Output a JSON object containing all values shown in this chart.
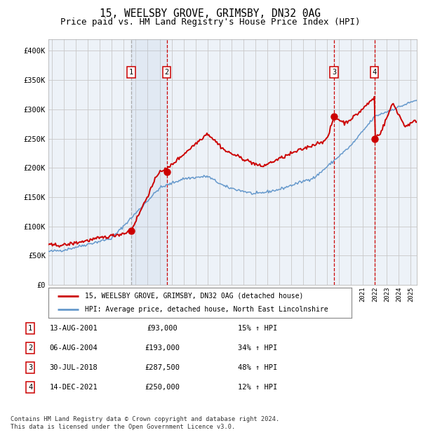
{
  "title": "15, WEELSBY GROVE, GRIMSBY, DN32 0AG",
  "subtitle": "Price paid vs. HM Land Registry's House Price Index (HPI)",
  "ylim": [
    0,
    420000
  ],
  "yticks": [
    0,
    50000,
    100000,
    150000,
    200000,
    250000,
    300000,
    350000,
    400000
  ],
  "ytick_labels": [
    "£0",
    "£50K",
    "£100K",
    "£150K",
    "£200K",
    "£250K",
    "£300K",
    "£350K",
    "£400K"
  ],
  "xlim_start": 1994.7,
  "xlim_end": 2025.5,
  "background_color": "#ffffff",
  "plot_bg_color": "#edf2f8",
  "grid_color": "#c8c8c8",
  "transaction_color": "#cc0000",
  "hpi_color": "#6699cc",
  "sale_points": [
    {
      "label": "1",
      "date_num": 2001.617,
      "price": 93000
    },
    {
      "label": "2",
      "date_num": 2004.594,
      "price": 193000
    },
    {
      "label": "3",
      "date_num": 2018.578,
      "price": 287500
    },
    {
      "label": "4",
      "date_num": 2021.953,
      "price": 250000
    }
  ],
  "legend_line1": "15, WEELSBY GROVE, GRIMSBY, DN32 0AG (detached house)",
  "legend_line2": "HPI: Average price, detached house, North East Lincolnshire",
  "table_rows": [
    [
      "1",
      "13-AUG-2001",
      "£93,000",
      "15% ↑ HPI"
    ],
    [
      "2",
      "06-AUG-2004",
      "£193,000",
      "34% ↑ HPI"
    ],
    [
      "3",
      "30-JUL-2018",
      "£287,500",
      "48% ↑ HPI"
    ],
    [
      "4",
      "14-DEC-2021",
      "£250,000",
      "12% ↑ HPI"
    ]
  ],
  "footnote": "Contains HM Land Registry data © Crown copyright and database right 2024.\nThis data is licensed under the Open Government Licence v3.0.",
  "shaded_region": [
    2001.617,
    2004.594
  ],
  "title_fontsize": 10.5,
  "subtitle_fontsize": 9
}
